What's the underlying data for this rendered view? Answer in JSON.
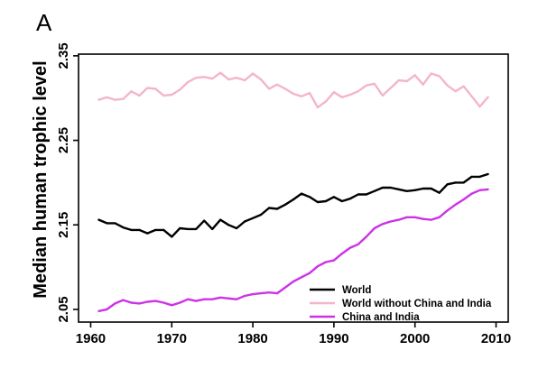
{
  "panel_label": "A",
  "chart_data": {
    "type": "line",
    "title": "",
    "xlabel": "",
    "ylabel": "Median human trophic level",
    "xlim": [
      1958.5,
      2011.5
    ],
    "ylim": [
      2.035,
      2.352
    ],
    "x_ticks": [
      "1960",
      "1970",
      "1980",
      "1990",
      "2000",
      "2010"
    ],
    "y_ticks": [
      "2.35",
      "2.25",
      "2.15",
      "2.05"
    ],
    "grid": false,
    "legend_position": "bottom-right",
    "x": [
      1961,
      1962,
      1963,
      1964,
      1965,
      1966,
      1967,
      1968,
      1969,
      1970,
      1971,
      1972,
      1973,
      1974,
      1975,
      1976,
      1977,
      1978,
      1979,
      1980,
      1981,
      1982,
      1983,
      1984,
      1985,
      1986,
      1987,
      1988,
      1989,
      1990,
      1991,
      1992,
      1993,
      1994,
      1995,
      1996,
      1997,
      1998,
      1999,
      2000,
      2001,
      2002,
      2003,
      2004,
      2005,
      2006,
      2007,
      2008,
      2009
    ],
    "series": [
      {
        "name": "World",
        "color": "#000000",
        "values": [
          2.156,
          2.152,
          2.152,
          2.147,
          2.144,
          2.144,
          2.14,
          2.144,
          2.144,
          2.136,
          2.146,
          2.145,
          2.145,
          2.155,
          2.145,
          2.156,
          2.15,
          2.146,
          2.154,
          2.158,
          2.162,
          2.17,
          2.169,
          2.174,
          2.18,
          2.187,
          2.183,
          2.177,
          2.178,
          2.183,
          2.178,
          2.181,
          2.186,
          2.186,
          2.19,
          2.194,
          2.194,
          2.192,
          2.19,
          2.191,
          2.193,
          2.193,
          2.188,
          2.198,
          2.2,
          2.2,
          2.207,
          2.207,
          2.21
        ]
      },
      {
        "name": "World without China and India",
        "color": "#f4b5cc",
        "values": [
          2.298,
          2.301,
          2.298,
          2.299,
          2.308,
          2.303,
          2.312,
          2.311,
          2.303,
          2.304,
          2.31,
          2.319,
          2.324,
          2.325,
          2.323,
          2.33,
          2.322,
          2.324,
          2.321,
          2.329,
          2.322,
          2.311,
          2.316,
          2.311,
          2.305,
          2.302,
          2.306,
          2.289,
          2.296,
          2.307,
          2.301,
          2.304,
          2.308,
          2.315,
          2.317,
          2.303,
          2.312,
          2.321,
          2.32,
          2.327,
          2.316,
          2.329,
          2.326,
          2.315,
          2.308,
          2.314,
          2.302,
          2.29,
          2.301
        ]
      },
      {
        "name": "China and India",
        "color": "#cc33e6",
        "values": [
          2.048,
          2.05,
          2.057,
          2.061,
          2.058,
          2.057,
          2.059,
          2.06,
          2.058,
          2.055,
          2.058,
          2.062,
          2.06,
          2.062,
          2.062,
          2.064,
          2.063,
          2.062,
          2.066,
          2.068,
          2.069,
          2.07,
          2.069,
          2.076,
          2.083,
          2.088,
          2.093,
          2.101,
          2.106,
          2.108,
          2.116,
          2.123,
          2.127,
          2.136,
          2.146,
          2.151,
          2.154,
          2.156,
          2.159,
          2.159,
          2.157,
          2.156,
          2.159,
          2.167,
          2.174,
          2.18,
          2.187,
          2.191,
          2.192
        ]
      }
    ]
  }
}
